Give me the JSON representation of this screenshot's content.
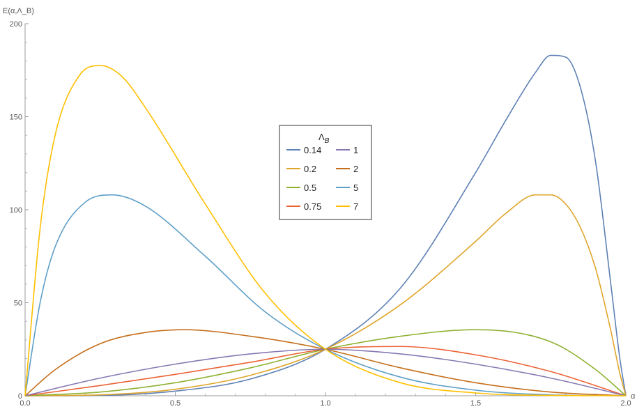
{
  "chart_data": {
    "type": "line",
    "ylabel": "E(α,Λ_B)",
    "xlabel": "α",
    "xlim": [
      0,
      2
    ],
    "ylim": [
      0,
      200
    ],
    "x_ticks": [
      "0.0",
      "0.5",
      "1.0",
      "1.5",
      "2.0"
    ],
    "y_ticks": [
      "0",
      "50",
      "100",
      "150",
      "200"
    ],
    "grid": false,
    "legend": {
      "title": "Λ",
      "title_subscript": "B",
      "position": "center",
      "columns": 2
    },
    "series": [
      {
        "name": "0.14",
        "color": "#5E81B5",
        "x": [
          0,
          0.25,
          0.5,
          0.75,
          1.0,
          1.25,
          1.5,
          1.6,
          1.7,
          1.75,
          1.8,
          1.85,
          1.9,
          1.95,
          1.98,
          2.0
        ],
        "y": [
          0,
          0.2,
          2.5,
          9,
          25,
          58,
          120,
          148,
          174,
          183,
          182,
          165,
          125,
          60,
          20,
          0
        ]
      },
      {
        "name": "0.2",
        "color": "#E0A52A",
        "x": [
          0,
          0.25,
          0.5,
          0.75,
          1.0,
          1.25,
          1.5,
          1.6,
          1.7,
          1.75,
          1.8,
          1.85,
          1.9,
          1.95,
          1.98,
          2.0
        ],
        "y": [
          0,
          0.5,
          3.5,
          11,
          25,
          49,
          83,
          98,
          108,
          108,
          103,
          90,
          68,
          35,
          12,
          0
        ]
      },
      {
        "name": "0.5",
        "color": "#8FB131",
        "x": [
          0,
          0.25,
          0.5,
          0.75,
          1.0,
          1.25,
          1.5,
          1.75,
          1.9,
          2.0
        ],
        "y": [
          0,
          2,
          7,
          15,
          25,
          32,
          35.5,
          29,
          14,
          0
        ]
      },
      {
        "name": "0.75",
        "color": "#EB6235",
        "x": [
          0,
          0.25,
          0.5,
          0.75,
          1.0,
          1.25,
          1.5,
          1.75,
          2.0
        ],
        "y": [
          0,
          5.5,
          11.5,
          18,
          25,
          26.5,
          22,
          13,
          0
        ]
      },
      {
        "name": "1",
        "color": "#8778B3",
        "x": [
          0,
          0.25,
          0.5,
          0.75,
          1.0,
          1.25,
          1.5,
          1.75,
          2.0
        ],
        "y": [
          0,
          9.5,
          17,
          22.5,
          25,
          22.5,
          17,
          9.5,
          0
        ]
      },
      {
        "name": "2",
        "color": "#C56E1A",
        "x": [
          0,
          0.1,
          0.25,
          0.4,
          0.53,
          0.75,
          1.0,
          1.25,
          1.5,
          1.75,
          2.0
        ],
        "y": [
          0,
          14,
          28,
          34,
          35.5,
          32,
          25,
          15,
          7,
          2,
          0
        ]
      },
      {
        "name": "5",
        "color": "#5D9EC7",
        "x": [
          0,
          0.05,
          0.1,
          0.2,
          0.29,
          0.4,
          0.6,
          0.8,
          1.0,
          1.25,
          1.5,
          1.75,
          2.0
        ],
        "y": [
          0,
          50,
          80,
          104,
          108,
          102,
          75,
          45,
          25,
          10,
          3,
          0.5,
          0
        ]
      },
      {
        "name": "7",
        "color": "#FFBF00",
        "x": [
          0,
          0.05,
          0.1,
          0.18,
          0.25,
          0.32,
          0.4,
          0.6,
          0.8,
          1.0,
          1.25,
          1.5,
          1.75,
          2.0
        ],
        "y": [
          0,
          90,
          140,
          172,
          177.5,
          172,
          155,
          103,
          55,
          25,
          7,
          1.5,
          0.2,
          0
        ]
      }
    ]
  }
}
